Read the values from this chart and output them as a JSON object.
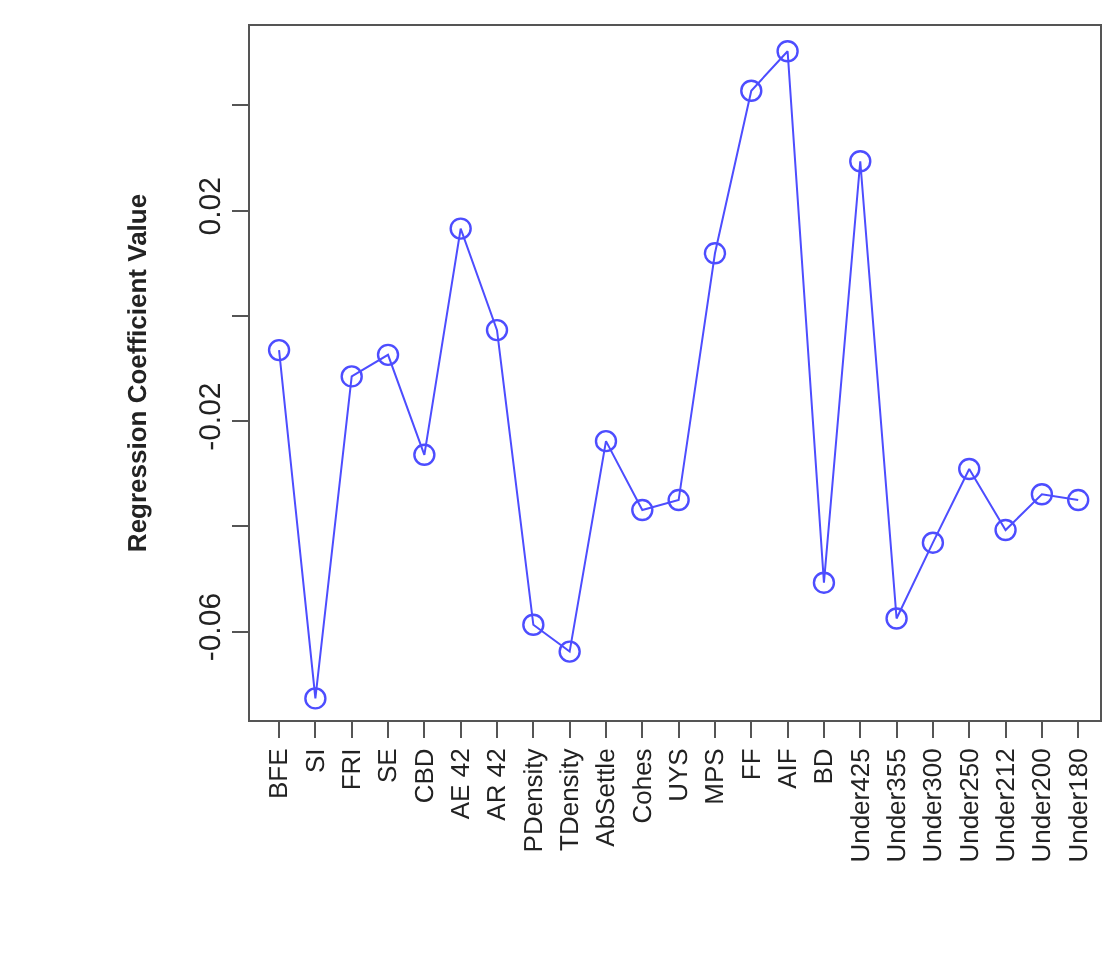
{
  "chart_data": {
    "type": "line",
    "ylabel": "Regression Coefficient Value",
    "categories": [
      "BFE",
      "SI",
      "FRI",
      "SE",
      "CBD",
      "AE 42",
      "AR 42",
      "PDensity",
      "TDensity",
      "AbSettle",
      "Cohes",
      "UYS",
      "MPS",
      "FF",
      "AIF",
      "BD",
      "Under425",
      "Under355",
      "Under300",
      "Under250",
      "Under212",
      "Under200",
      "Under180"
    ],
    "series": [
      {
        "color": "#4d4dff",
        "values": [
          -0.0065,
          -0.0727,
          -0.0115,
          -0.0074,
          -0.0264,
          0.0166,
          -0.0027,
          -0.0587,
          -0.0638,
          -0.0238,
          -0.0369,
          -0.035,
          0.0119,
          0.0428,
          0.0503,
          -0.0507,
          0.0294,
          -0.0575,
          -0.0431,
          -0.0291,
          -0.0407,
          -0.0339,
          -0.035
        ]
      }
    ],
    "ylim": [
      -0.0768,
      0.0551
    ],
    "yticks": [
      {
        "value": -0.06,
        "label": "-0.06"
      },
      {
        "value": -0.04,
        "label": null
      },
      {
        "value": -0.02,
        "label": "-0.02"
      },
      {
        "value": 0,
        "label": null
      },
      {
        "value": 0.02,
        "label": "0.02"
      },
      {
        "value": 0.04,
        "label": null
      }
    ],
    "marker": "circle",
    "line_style": "solid"
  }
}
